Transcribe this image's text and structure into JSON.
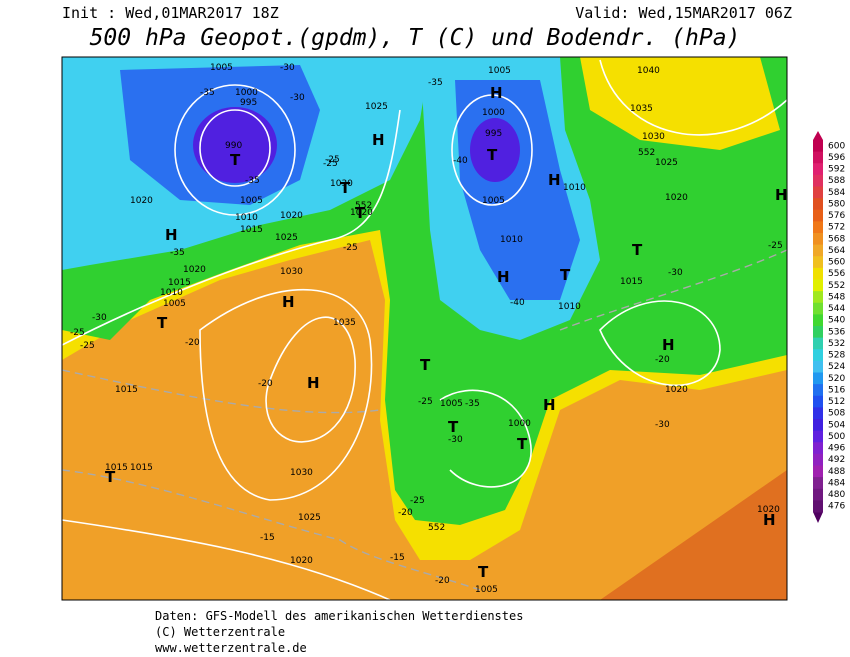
{
  "header": {
    "init": "Init : Wed,01MAR2017 18Z",
    "valid": "Valid: Wed,15MAR2017 06Z",
    "title": "500 hPa Geopot.(gpdm), T (C) und Bodendr. (hPa)"
  },
  "footer": {
    "line1": "Daten: GFS-Modell des amerikanischen Wetterdienstes",
    "line2": "(C) Wetterzentrale",
    "line3": "www.wetterzentrale.de"
  },
  "colorbar": {
    "labels": [
      600,
      596,
      592,
      588,
      584,
      580,
      576,
      572,
      568,
      564,
      560,
      556,
      552,
      548,
      544,
      540,
      536,
      532,
      528,
      524,
      520,
      516,
      512,
      508,
      504,
      500,
      496,
      492,
      488,
      484,
      480,
      476
    ]
  },
  "map": {
    "labels": [
      "1005",
      "1000",
      "995",
      "990",
      "1005",
      "1010",
      "1015",
      "1020",
      "1025",
      "1020",
      "1015",
      "1010",
      "1005",
      "1030",
      "1035",
      "1030",
      "1025",
      "1020",
      "1015",
      "1015",
      "1015",
      "1005",
      "1000",
      "995",
      "1005",
      "1010",
      "1010",
      "1010",
      "1015",
      "1020",
      "1040",
      "1035",
      "1030",
      "1025",
      "1020",
      "1020",
      "1005",
      "1000",
      "1005",
      "1020",
      "1025",
      "1020",
      "1030",
      "H",
      "T",
      "H",
      "T",
      "H",
      "H",
      "T",
      "H",
      "T",
      "T",
      "H",
      "T",
      "T",
      "H",
      "T",
      "T",
      "T",
      "T",
      "H",
      "H",
      "H",
      "T",
      "H",
      "-35",
      "-30",
      "-35",
      "-25",
      "-30",
      "-25",
      "-25",
      "-35",
      "-30",
      "-25",
      "-20",
      "-20",
      "-15",
      "-35",
      "-40",
      "-40",
      "-35",
      "-30",
      "-30",
      "-25",
      "-20",
      "-15",
      "-20",
      "-25",
      "-30",
      "-20",
      "-25",
      "-25",
      "552",
      "552",
      "552",
      "552"
    ]
  }
}
